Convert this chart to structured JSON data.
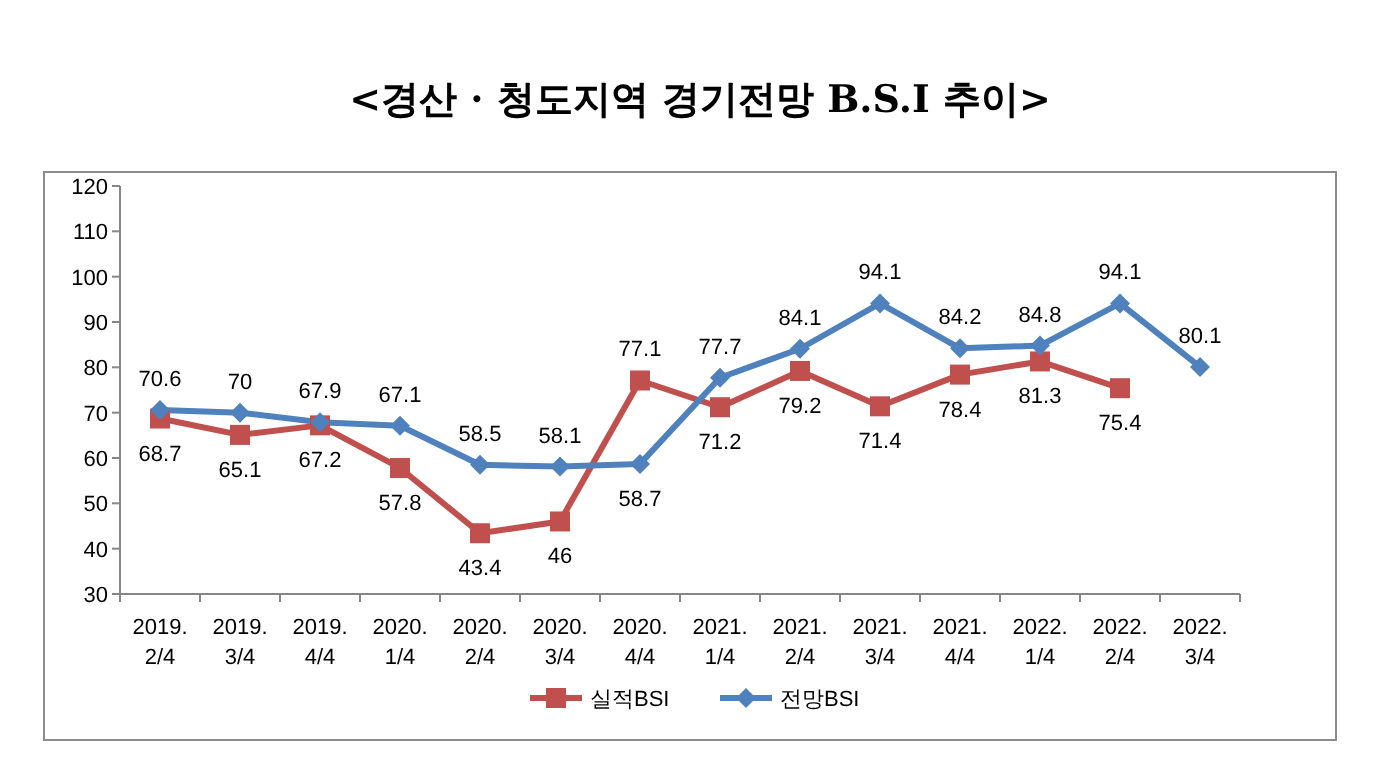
{
  "chart_data": {
    "type": "line",
    "title": "<경산 · 청도지역 경기전망 B.S.I 추이>",
    "categories": [
      "2019. 2/4",
      "2019. 3/4",
      "2019. 4/4",
      "2020. 1/4",
      "2020. 2/4",
      "2020. 3/4",
      "2020. 4/4",
      "2021. 1/4",
      "2021. 2/4",
      "2021. 3/4",
      "2021. 4/4",
      "2022. 1/4",
      "2022. 2/4",
      "2022. 3/4"
    ],
    "series": [
      {
        "name": "실적BSI",
        "color": "#c0504d",
        "marker": "square",
        "values": [
          68.7,
          65.1,
          67.2,
          57.8,
          43.4,
          46,
          77.1,
          71.2,
          79.2,
          71.4,
          78.4,
          81.3,
          75.4,
          null
        ]
      },
      {
        "name": "전망BSI",
        "color": "#4f81bd",
        "marker": "diamond",
        "values": [
          70.6,
          70,
          67.9,
          67.1,
          58.5,
          58.1,
          58.7,
          77.7,
          84.1,
          94.1,
          84.2,
          84.8,
          94.1,
          80.1
        ]
      }
    ],
    "ylim": [
      30,
      120
    ],
    "yticks": [
      30,
      40,
      50,
      60,
      70,
      80,
      90,
      100,
      110,
      120
    ],
    "data_labels": true,
    "grid": false,
    "legend": "bottom"
  }
}
